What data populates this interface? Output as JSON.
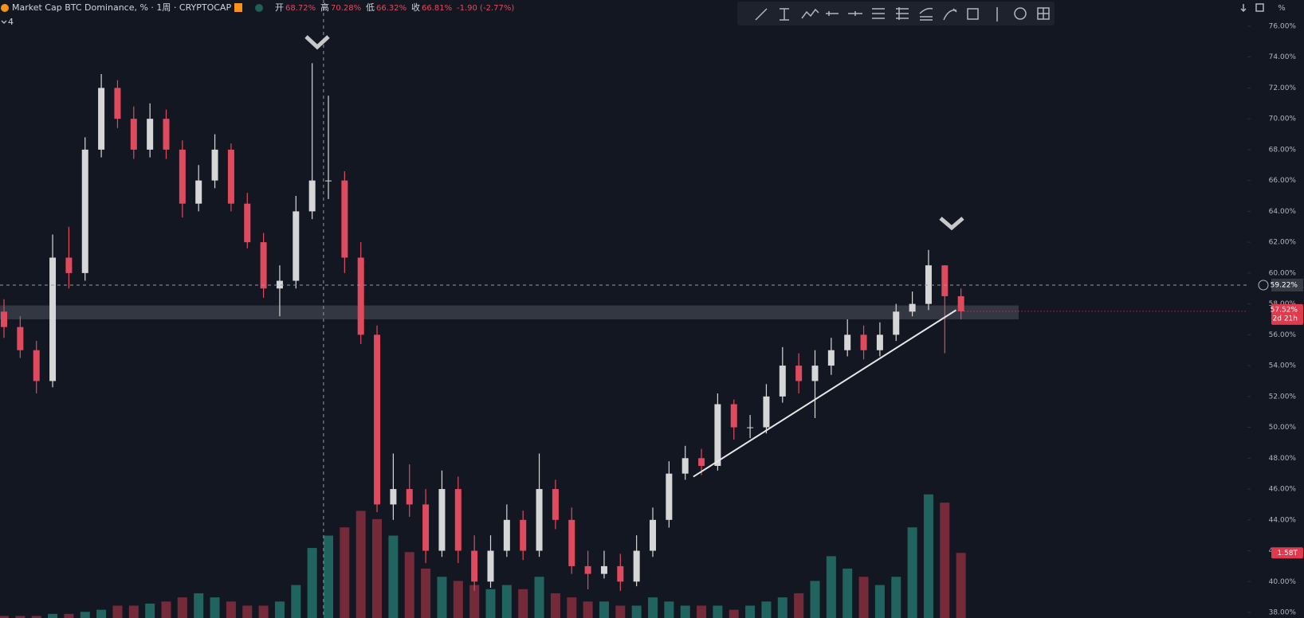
{
  "chart_data": {
    "type": "candlestick",
    "header": {
      "symbol": "Market Cap BTC Dominance, % · 1周 · CRYPTOCAP",
      "ohlc": [
        {
          "name": "开",
          "label": "68.72%"
        },
        {
          "name": "高",
          "label": "70.28%"
        },
        {
          "name": "低",
          "label": "66.32%"
        },
        {
          "name": "收",
          "label": "66.81%"
        }
      ],
      "change": "-1.90 (-2.77%)",
      "indicators": "4",
      "unit": "%"
    },
    "categories": [
      null,
      null,
      null,
      null,
      null,
      null,
      null,
      null,
      null,
      null,
      null,
      null,
      null,
      null,
      null,
      null,
      null,
      null,
      null,
      null,
      null,
      null,
      null,
      null,
      null,
      null,
      null,
      null,
      null,
      null,
      null,
      null,
      null,
      null,
      null,
      null,
      null,
      null,
      null,
      null,
      null,
      null,
      null,
      null,
      null,
      null,
      null,
      null,
      null,
      null,
      null,
      null,
      null,
      null,
      null,
      null,
      null,
      null,
      null,
      null
    ],
    "open": [
      57.5,
      56.5,
      55,
      53,
      61,
      60,
      68,
      72,
      70,
      68,
      70,
      68,
      64.5,
      66,
      68,
      64.5,
      62,
      59,
      59.5,
      64,
      66,
      66,
      61,
      56,
      45,
      46,
      45,
      42,
      46,
      42,
      40,
      42,
      44,
      42,
      46,
      44,
      41,
      40.5,
      41,
      40,
      42,
      44,
      47,
      48,
      47.5,
      51.5,
      50,
      50,
      52,
      54,
      53,
      54,
      55,
      56,
      55,
      56,
      57.5,
      58,
      60.5,
      58.5
    ],
    "high": [
      58.3,
      57.2,
      55.6,
      62.5,
      63,
      68.8,
      72.9,
      72.5,
      70.8,
      71,
      70.6,
      68.6,
      67,
      69,
      68.4,
      65.2,
      62.6,
      60.5,
      65,
      73.6,
      71.5,
      66.6,
      62,
      56.6,
      48.3,
      47.6,
      46,
      47.2,
      46.8,
      43,
      43,
      45,
      44.6,
      48.3,
      46.6,
      44.8,
      42,
      42,
      41.8,
      43,
      44.8,
      47.8,
      48.8,
      48.6,
      52.2,
      51.8,
      50.8,
      52.8,
      55.2,
      54.8,
      55,
      55.8,
      57,
      56.6,
      56.8,
      58,
      58.8,
      61.5,
      60.5,
      59
    ],
    "low": [
      55.8,
      54.5,
      52.2,
      52.6,
      59,
      59.5,
      67.5,
      69.4,
      67.4,
      67.5,
      67.4,
      63.6,
      64,
      65.5,
      64,
      61.6,
      58.4,
      57.2,
      59,
      63.5,
      64.8,
      60,
      55.4,
      44.5,
      44,
      44.2,
      41.2,
      41.6,
      41.2,
      39.4,
      39.6,
      41.6,
      41.4,
      41.6,
      43.4,
      40.5,
      39.5,
      40.2,
      39.4,
      39.7,
      41.6,
      43.5,
      46.6,
      46.9,
      47.2,
      49.2,
      49.3,
      49.6,
      51.6,
      52.2,
      50.6,
      53.4,
      54.6,
      54.4,
      54.6,
      55.6,
      57.2,
      57.6,
      54.8,
      57
    ],
    "close": [
      56.5,
      55,
      53,
      61,
      60,
      68,
      72,
      70,
      68,
      70,
      68,
      64.5,
      66,
      68,
      64.5,
      62,
      59,
      59.5,
      64,
      66,
      66,
      61,
      56,
      45,
      46,
      45,
      42,
      46,
      42,
      40,
      42,
      44,
      42,
      46,
      44,
      41,
      40.5,
      41,
      40,
      42,
      44,
      47,
      48,
      47.5,
      51.5,
      50,
      50,
      52,
      54,
      53,
      54,
      55,
      56,
      55,
      56,
      57.5,
      58,
      60.5,
      58.5,
      57.52
    ],
    "volume": [
      0.05,
      0.05,
      0.05,
      0.1,
      0.1,
      0.15,
      0.2,
      0.3,
      0.3,
      0.35,
      0.4,
      0.5,
      0.6,
      0.5,
      0.4,
      0.3,
      0.3,
      0.4,
      0.8,
      1.7,
      2.0,
      2.2,
      2.6,
      2.4,
      2.0,
      1.6,
      1.2,
      1.0,
      0.9,
      0.8,
      0.7,
      0.8,
      0.7,
      1.0,
      0.6,
      0.5,
      0.4,
      0.4,
      0.3,
      0.3,
      0.5,
      0.4,
      0.3,
      0.3,
      0.3,
      0.2,
      0.3,
      0.4,
      0.5,
      0.6,
      0.9,
      1.5,
      1.2,
      1.0,
      0.8,
      1.0,
      2.2,
      3.0,
      2.8,
      1.58
    ],
    "volume_lim": [
      0,
      15
    ],
    "last_volume": {
      "value": 1.58,
      "label": "1.58T"
    },
    "up_color": "#d6d6d6",
    "down_color": "#e04a5f",
    "volume_up_color": "#26786f",
    "volume_down_color": "#8e3040",
    "ylim": [
      37.64,
      77.7
    ],
    "yticks": [
      {
        "value": 38,
        "label": "38.00%"
      },
      {
        "value": 40,
        "label": "40.00%"
      },
      {
        "value": 42,
        "label": "42.00%"
      },
      {
        "value": 44,
        "label": "44.00%"
      },
      {
        "value": 46,
        "label": "46.00%"
      },
      {
        "value": 48,
        "label": "48.00%"
      },
      {
        "value": 50,
        "label": "50.00%"
      },
      {
        "value": 52,
        "label": "52.00%"
      },
      {
        "value": 54,
        "label": "54.00%"
      },
      {
        "value": 56,
        "label": "56.00%"
      },
      {
        "value": 58,
        "label": "58.00%"
      },
      {
        "value": 60,
        "label": "60.00%"
      },
      {
        "value": 62,
        "label": "62.00%"
      },
      {
        "value": 64,
        "label": "64.00%"
      },
      {
        "value": 66,
        "label": "66.00%"
      },
      {
        "value": 68,
        "label": "68.00%"
      },
      {
        "value": 70,
        "label": "70.00%"
      },
      {
        "value": 72,
        "label": "72.00%"
      },
      {
        "value": 74,
        "label": "74.00%"
      },
      {
        "value": 76,
        "label": "76.00%"
      }
    ],
    "zone": [
      57.0,
      57.9
    ],
    "trendline": {
      "x": [
        42.5,
        58.7
      ],
      "y": [
        46.8,
        57.6
      ]
    },
    "crosshair": {
      "x": 19.7,
      "y": {
        "value": 59.22,
        "label": "59.22%"
      }
    },
    "last_price": {
      "value": 57.52,
      "label": "57.52%",
      "countdown": "2d 21h"
    }
  }
}
